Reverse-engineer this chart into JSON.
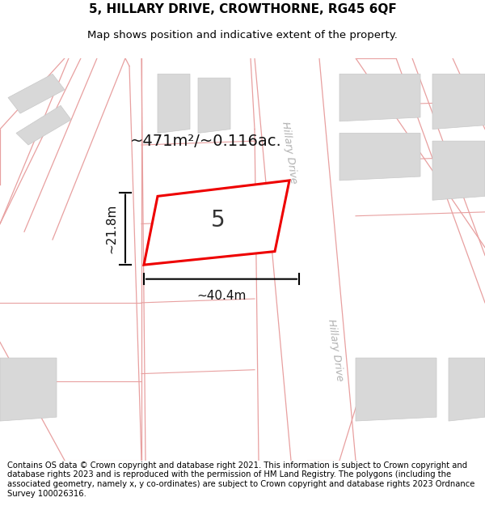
{
  "title": "5, HILLARY DRIVE, CROWTHORNE, RG45 6QF",
  "subtitle": "Map shows position and indicative extent of the property.",
  "footer": "Contains OS data © Crown copyright and database right 2021. This information is subject to Crown copyright and database rights 2023 and is reproduced with the permission of HM Land Registry. The polygons (including the associated geometry, namely x, y co-ordinates) are subject to Crown copyright and database rights 2023 Ordnance Survey 100026316.",
  "road_line_color": "#e8a0a0",
  "parcel_line_color": "#f0b8b8",
  "building_fill": "#d8d8d8",
  "building_edge": "#c8c8c8",
  "plot_fill": "#ffffff",
  "plot_edge": "#ee0000",
  "plot_lw": 2.2,
  "label_number": "5",
  "label_area": "~471m²/~0.116ac.",
  "label_width": "~40.4m",
  "label_height": "~21.8m",
  "hillary_drive_color": "#c0c0c0",
  "title_fontsize": 11,
  "subtitle_fontsize": 9.5,
  "footer_fontsize": 7.2
}
